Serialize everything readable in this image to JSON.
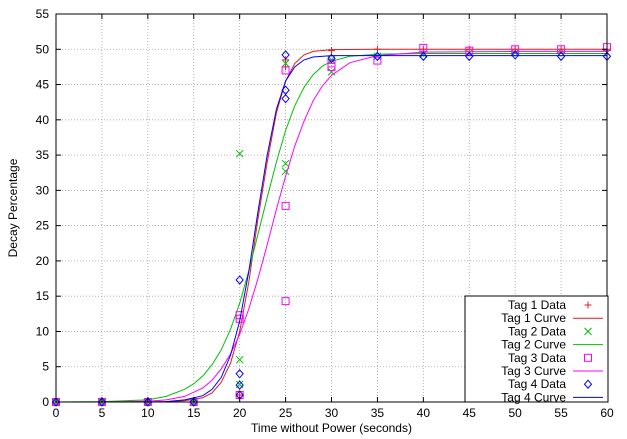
{
  "chart_data": {
    "type": "scatter",
    "title": "",
    "xlabel": "Time without Power (seconds)",
    "ylabel": "Decay Percentage",
    "xlim": [
      0,
      60
    ],
    "ylim": [
      0,
      55
    ],
    "xticks": [
      0,
      5,
      10,
      15,
      20,
      25,
      30,
      35,
      40,
      45,
      50,
      55,
      60
    ],
    "yticks": [
      0,
      5,
      10,
      15,
      20,
      25,
      30,
      35,
      40,
      45,
      50,
      55
    ],
    "grid": true,
    "legend_position": "bottom-right",
    "series": [
      {
        "name": "Tag 1 Data",
        "kind": "points",
        "marker": "plus",
        "color": "#e41a1c",
        "points": [
          [
            0,
            0
          ],
          [
            5,
            0
          ],
          [
            10,
            0
          ],
          [
            15,
            0
          ],
          [
            20,
            0.5
          ],
          [
            20,
            1
          ],
          [
            25,
            47.5
          ],
          [
            25,
            48.5
          ],
          [
            30,
            49.8
          ],
          [
            35,
            50
          ],
          [
            40,
            50
          ],
          [
            45,
            50
          ],
          [
            50,
            50
          ],
          [
            55,
            50
          ],
          [
            60,
            50
          ]
        ]
      },
      {
        "name": "Tag 1 Curve",
        "kind": "line",
        "color": "#e41a1c",
        "points": [
          [
            0,
            0
          ],
          [
            5,
            0
          ],
          [
            10,
            0
          ],
          [
            12,
            0.05
          ],
          [
            14,
            0.2
          ],
          [
            16,
            0.6
          ],
          [
            17,
            1.3
          ],
          [
            18,
            2.8
          ],
          [
            19,
            5.5
          ],
          [
            20,
            10
          ],
          [
            21,
            17
          ],
          [
            22,
            26
          ],
          [
            23,
            34
          ],
          [
            24,
            41
          ],
          [
            25,
            45.5
          ],
          [
            26,
            48
          ],
          [
            27,
            49.2
          ],
          [
            28,
            49.7
          ],
          [
            30,
            49.95
          ],
          [
            35,
            50
          ],
          [
            40,
            50
          ],
          [
            45,
            50
          ],
          [
            50,
            50
          ],
          [
            55,
            50
          ],
          [
            60,
            50
          ]
        ]
      },
      {
        "name": "Tag 2 Data",
        "kind": "points",
        "marker": "cross",
        "color": "#00c000",
        "points": [
          [
            0,
            0
          ],
          [
            5,
            0
          ],
          [
            10,
            0
          ],
          [
            15,
            0
          ],
          [
            20,
            35.2
          ],
          [
            20,
            6
          ],
          [
            20,
            2.5
          ],
          [
            25,
            33.8
          ],
          [
            25,
            32.7
          ],
          [
            25,
            48
          ],
          [
            30,
            46.8
          ],
          [
            30,
            48.5
          ],
          [
            35,
            49
          ],
          [
            40,
            49.3
          ],
          [
            45,
            49.5
          ],
          [
            50,
            49.5
          ],
          [
            55,
            49.6
          ],
          [
            60,
            49.5
          ]
        ]
      },
      {
        "name": "Tag 2 Curve",
        "kind": "line",
        "color": "#00c000",
        "points": [
          [
            0,
            0
          ],
          [
            5,
            0.05
          ],
          [
            10,
            0.3
          ],
          [
            12,
            0.8
          ],
          [
            14,
            1.8
          ],
          [
            15,
            2.6
          ],
          [
            16,
            3.7
          ],
          [
            17,
            5.3
          ],
          [
            18,
            7.4
          ],
          [
            19,
            10.3
          ],
          [
            20,
            14
          ],
          [
            21,
            18.6
          ],
          [
            22,
            23.8
          ],
          [
            23,
            29
          ],
          [
            24,
            34
          ],
          [
            25,
            38.5
          ],
          [
            26,
            42
          ],
          [
            27,
            44.6
          ],
          [
            28,
            46.4
          ],
          [
            29,
            47.6
          ],
          [
            30,
            48.3
          ],
          [
            32,
            49
          ],
          [
            35,
            49.3
          ],
          [
            40,
            49.4
          ],
          [
            50,
            49.4
          ],
          [
            60,
            49.4
          ]
        ]
      },
      {
        "name": "Tag 3 Data",
        "kind": "points",
        "marker": "square",
        "color": "#ff00ff",
        "points": [
          [
            0,
            0
          ],
          [
            5,
            0
          ],
          [
            10,
            0
          ],
          [
            15,
            0
          ],
          [
            20,
            12.3
          ],
          [
            20,
            11.8
          ],
          [
            20,
            1
          ],
          [
            25,
            47
          ],
          [
            25,
            27.8
          ],
          [
            25,
            14.3
          ],
          [
            30,
            47.5
          ],
          [
            30,
            48
          ],
          [
            35,
            48.4
          ],
          [
            40,
            50.2
          ],
          [
            45,
            49.8
          ],
          [
            50,
            50
          ],
          [
            55,
            50
          ],
          [
            60,
            50.3
          ]
        ]
      },
      {
        "name": "Tag 3 Curve",
        "kind": "line",
        "color": "#ff00ff",
        "points": [
          [
            0,
            0
          ],
          [
            5,
            0
          ],
          [
            10,
            0.1
          ],
          [
            12,
            0.3
          ],
          [
            14,
            0.8
          ],
          [
            16,
            2
          ],
          [
            17,
            3.1
          ],
          [
            18,
            4.7
          ],
          [
            19,
            6.8
          ],
          [
            20,
            9.6
          ],
          [
            21,
            13.2
          ],
          [
            22,
            17.5
          ],
          [
            23,
            22.3
          ],
          [
            24,
            27.3
          ],
          [
            25,
            32
          ],
          [
            26,
            36.3
          ],
          [
            27,
            39.8
          ],
          [
            28,
            42.7
          ],
          [
            29,
            44.8
          ],
          [
            30,
            46.3
          ],
          [
            32,
            48.1
          ],
          [
            35,
            49.1
          ],
          [
            40,
            49.6
          ],
          [
            50,
            49.7
          ],
          [
            60,
            49.7
          ]
        ]
      },
      {
        "name": "Tag 4 Data",
        "kind": "points",
        "marker": "diamond",
        "color": "#0000ff",
        "points": [
          [
            0,
            0
          ],
          [
            5,
            0
          ],
          [
            10,
            0
          ],
          [
            15,
            0
          ],
          [
            20,
            17.3
          ],
          [
            20,
            4
          ],
          [
            20,
            2.4
          ],
          [
            20,
            1
          ],
          [
            25,
            49.2
          ],
          [
            25,
            44.2
          ],
          [
            25,
            43
          ],
          [
            30,
            48.7
          ],
          [
            35,
            49
          ],
          [
            40,
            49
          ],
          [
            45,
            49
          ],
          [
            50,
            49.2
          ],
          [
            55,
            49
          ],
          [
            60,
            49
          ]
        ]
      },
      {
        "name": "Tag 4 Curve",
        "kind": "line",
        "color": "#0000ff",
        "points": [
          [
            0,
            0
          ],
          [
            5,
            0
          ],
          [
            10,
            0
          ],
          [
            12,
            0.05
          ],
          [
            14,
            0.3
          ],
          [
            16,
            0.9
          ],
          [
            17,
            1.8
          ],
          [
            18,
            3.5
          ],
          [
            19,
            6.6
          ],
          [
            20,
            11.5
          ],
          [
            21,
            18.5
          ],
          [
            22,
            27
          ],
          [
            23,
            35
          ],
          [
            24,
            41.5
          ],
          [
            25,
            45.5
          ],
          [
            26,
            47.5
          ],
          [
            27,
            48.5
          ],
          [
            28,
            48.9
          ],
          [
            30,
            49.1
          ],
          [
            35,
            49.1
          ],
          [
            40,
            49.1
          ],
          [
            50,
            49.1
          ],
          [
            60,
            49.1
          ]
        ]
      }
    ]
  }
}
